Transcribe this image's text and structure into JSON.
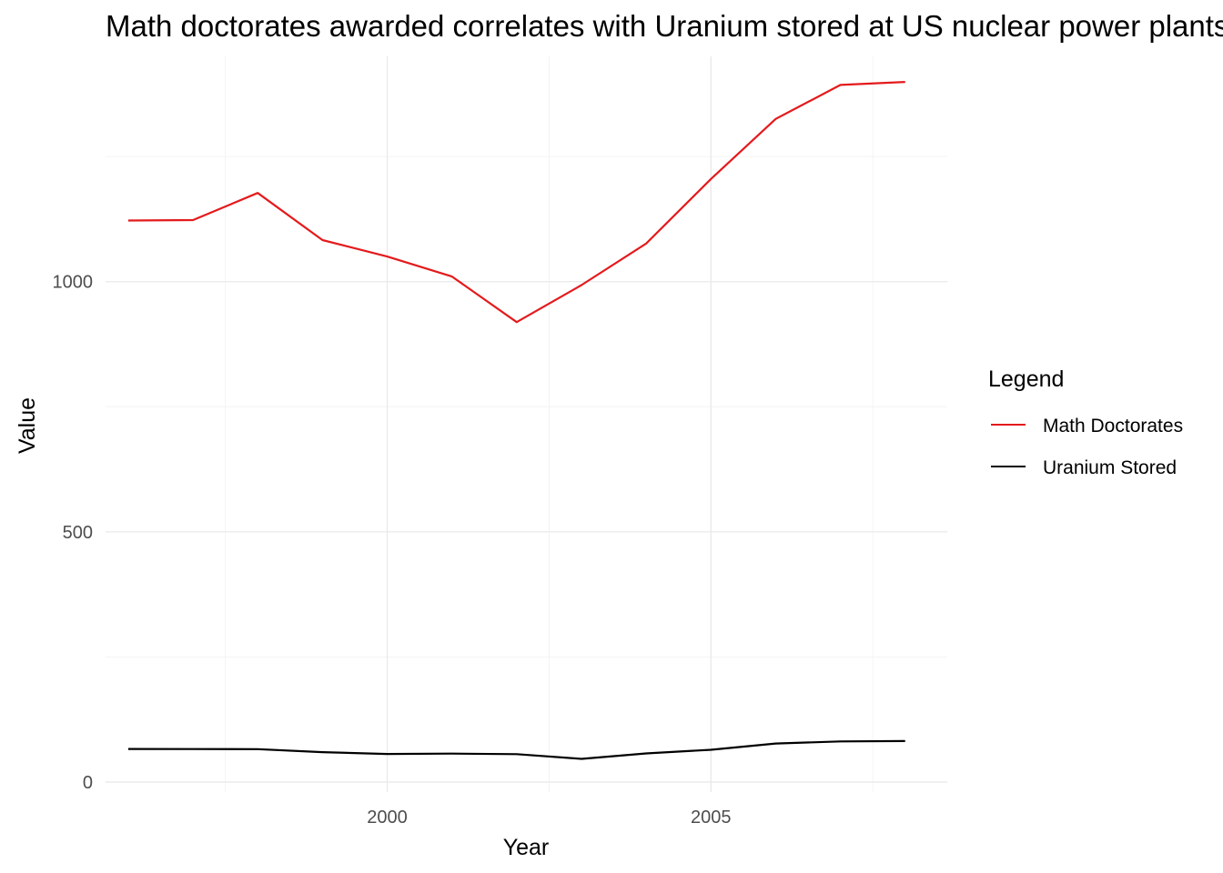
{
  "chart_data": {
    "type": "line",
    "title": "Math doctorates awarded correlates with Uranium stored at US nuclear power plants",
    "xlabel": "Year",
    "ylabel": "Value",
    "x": [
      1996,
      1997,
      1998,
      1999,
      2000,
      2001,
      2002,
      2003,
      2004,
      2005,
      2006,
      2007,
      2008
    ],
    "xlim": [
      1995.65,
      2008.65
    ],
    "ylim": [
      -20,
      1450
    ],
    "x_ticks": [
      2000,
      2005
    ],
    "y_ticks": [
      0,
      500,
      1000
    ],
    "x_minor_ticks": [
      1997.5,
      2002.5,
      2007.5
    ],
    "y_minor_ticks": [
      250,
      750,
      1250
    ],
    "grid": true,
    "legend": {
      "title": "Legend",
      "placement": "right"
    },
    "series": [
      {
        "name": "Math Doctorates",
        "color": "#e41a1c",
        "values": [
          1122,
          1123,
          1177,
          1083,
          1050,
          1010,
          919,
          993,
          1076,
          1205,
          1325,
          1393,
          1399
        ]
      },
      {
        "name": "Uranium Stored",
        "color": "#000000",
        "values": [
          66.1,
          65.9,
          65.8,
          59.8,
          56.1,
          56.8,
          55.7,
          46.3,
          57.3,
          64.5,
          77.1,
          81.2,
          82
        ]
      }
    ]
  }
}
